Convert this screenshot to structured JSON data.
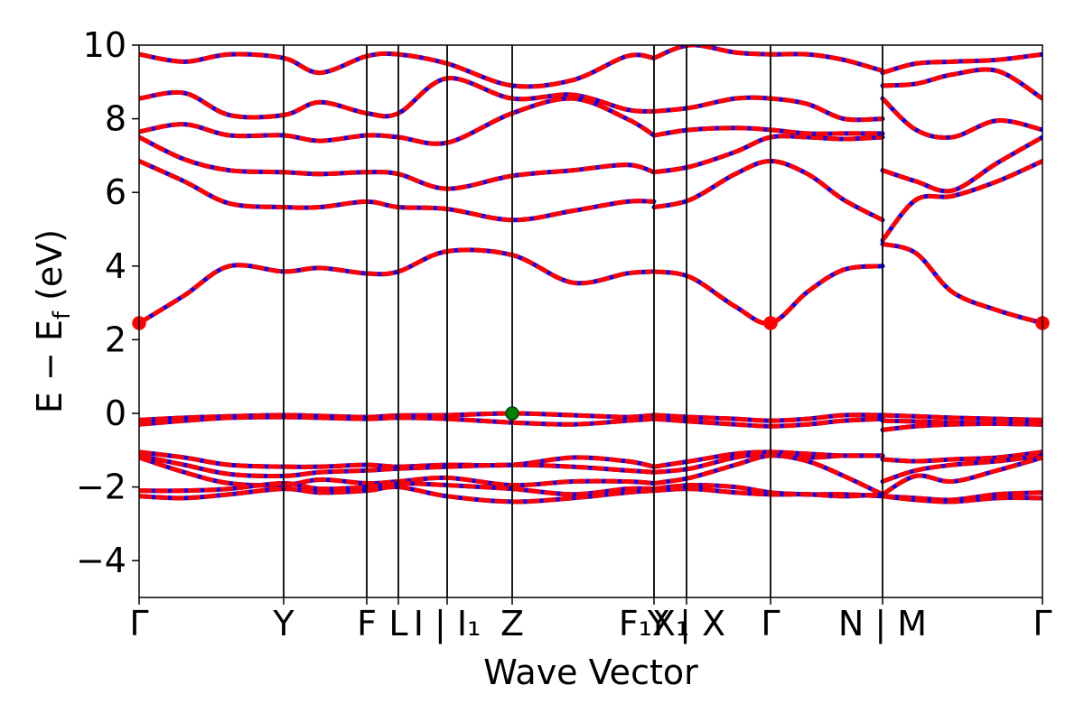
{
  "chart_data": {
    "type": "line",
    "title": "",
    "xlabel": "Wave Vector",
    "ylabel_parts": {
      "main": "E − E",
      "sub": "f",
      "unit": " (eV)"
    },
    "ylim": [
      -5,
      10
    ],
    "yticks": [
      {
        "value": -4,
        "label": "−4"
      },
      {
        "value": -2,
        "label": "−2"
      },
      {
        "value": 0,
        "label": "0"
      },
      {
        "value": 2,
        "label": "2"
      },
      {
        "value": 4,
        "label": "4"
      },
      {
        "value": 6,
        "label": "6"
      },
      {
        "value": 8,
        "label": "8"
      },
      {
        "value": 10,
        "label": "10"
      }
    ],
    "xlim": [
      0,
      100
    ],
    "kpath": [
      {
        "name": "gamma-1",
        "x": 0,
        "label": "Γ"
      },
      {
        "name": "y-1",
        "x": 16.0,
        "label": "Y"
      },
      {
        "name": "f",
        "x": 25.2,
        "label": "F"
      },
      {
        "name": "l",
        "x": 28.7,
        "label": "L"
      },
      {
        "name": "i-i1",
        "x": 34.1,
        "label": "I | I₁"
      },
      {
        "name": "z",
        "x": 41.3,
        "label": "Z"
      },
      {
        "name": "f1-x1",
        "x": 57.0,
        "label": "F₁X₁"
      },
      {
        "name": "y-x",
        "x": 60.6,
        "label": "Y | X"
      },
      {
        "name": "gamma-2",
        "x": 69.9,
        "label": "Γ"
      },
      {
        "name": "n-m",
        "x": 82.3,
        "label": "N | M"
      },
      {
        "name": "gamma-3",
        "x": 100,
        "label": "Γ"
      }
    ],
    "series_color": "#ff0000",
    "overlay_color": "#0000ff",
    "line_width": 5,
    "bands": [
      {
        "x": [
          0,
          5,
          10,
          16,
          20,
          25.2,
          28.7,
          34.1,
          41.3,
          48,
          54,
          57
        ],
        "y": [
          2.45,
          3.2,
          4.0,
          3.85,
          3.95,
          3.8,
          3.85,
          4.4,
          4.3,
          3.55,
          3.8,
          3.85
        ]
      },
      {
        "x": [
          57,
          61,
          66,
          69.9,
          74,
          78,
          82.3
        ],
        "y": [
          3.85,
          3.7,
          2.9,
          2.45,
          3.3,
          3.9,
          4.0
        ]
      },
      {
        "x": [
          82.3,
          86,
          90,
          95,
          100
        ],
        "y": [
          4.6,
          4.35,
          3.3,
          2.8,
          2.45
        ]
      },
      {
        "x": [
          0,
          5,
          10,
          16,
          20,
          25.2,
          28.7,
          34.1,
          41.3,
          48,
          54,
          57
        ],
        "y": [
          6.85,
          6.3,
          5.7,
          5.6,
          5.6,
          5.75,
          5.6,
          5.55,
          5.25,
          5.5,
          5.75,
          5.75
        ]
      },
      {
        "x": [
          57,
          61,
          66,
          69.9,
          74,
          78,
          82.3
        ],
        "y": [
          5.6,
          5.8,
          6.5,
          6.85,
          6.5,
          5.8,
          5.25
        ]
      },
      {
        "x": [
          82.3,
          86,
          90,
          95,
          100
        ],
        "y": [
          4.7,
          5.8,
          5.9,
          6.3,
          6.85
        ]
      },
      {
        "x": [
          0,
          5,
          10,
          16,
          20,
          25.2,
          28.7,
          34.1,
          41.3,
          48,
          54,
          57
        ],
        "y": [
          7.5,
          6.9,
          6.6,
          6.55,
          6.5,
          6.55,
          6.5,
          6.1,
          6.45,
          6.6,
          6.75,
          6.55
        ]
      },
      {
        "x": [
          57,
          61,
          66,
          69.9,
          74,
          78,
          82.3
        ],
        "y": [
          6.55,
          6.7,
          7.1,
          7.5,
          7.5,
          7.45,
          7.5
        ]
      },
      {
        "x": [
          82.3,
          86,
          90,
          95,
          100
        ],
        "y": [
          6.6,
          6.3,
          6.05,
          6.8,
          7.5
        ]
      },
      {
        "x": [
          0,
          5,
          10,
          16,
          20,
          25.2,
          28.7,
          34.1,
          41.3,
          48,
          54,
          57
        ],
        "y": [
          7.65,
          7.85,
          7.55,
          7.55,
          7.4,
          7.55,
          7.5,
          7.35,
          8.15,
          8.55,
          8.0,
          7.55
        ]
      },
      {
        "x": [
          57,
          61,
          66,
          69.9,
          74,
          78,
          82.3
        ],
        "y": [
          7.55,
          7.7,
          7.75,
          7.7,
          7.6,
          7.6,
          7.6
        ]
      },
      {
        "x": [
          82.3,
          86,
          90,
          95,
          100
        ],
        "y": [
          8.55,
          7.7,
          7.5,
          7.95,
          7.7
        ]
      },
      {
        "x": [
          0,
          5,
          10,
          16,
          20,
          25.2,
          28.7,
          34.1,
          41.3,
          48,
          54,
          57
        ],
        "y": [
          8.55,
          8.7,
          8.1,
          8.1,
          8.45,
          8.15,
          8.15,
          9.1,
          8.55,
          8.65,
          8.25,
          8.2
        ]
      },
      {
        "x": [
          57,
          61,
          66,
          69.9,
          74,
          78,
          82.3
        ],
        "y": [
          8.2,
          8.3,
          8.55,
          8.55,
          8.4,
          8.0,
          8.0
        ]
      },
      {
        "x": [
          82.3,
          86,
          90,
          95,
          100
        ],
        "y": [
          8.9,
          8.95,
          9.2,
          9.3,
          8.55
        ]
      },
      {
        "x": [
          0,
          5,
          10,
          16,
          20,
          25.2,
          28.7,
          34.1,
          41.3,
          48,
          54,
          57
        ],
        "y": [
          9.75,
          9.55,
          9.75,
          9.65,
          9.25,
          9.7,
          9.75,
          9.5,
          8.9,
          9.05,
          9.7,
          9.65
        ]
      },
      {
        "x": [
          57,
          61,
          66,
          69.9,
          74,
          78,
          82.3
        ],
        "y": [
          9.65,
          10.0,
          9.8,
          9.75,
          9.75,
          9.6,
          9.3
        ]
      },
      {
        "x": [
          82.3,
          86,
          90,
          95,
          100
        ],
        "y": [
          9.25,
          9.5,
          9.55,
          9.6,
          9.75
        ]
      },
      {
        "x": [
          0,
          5,
          10,
          16,
          20,
          25.2,
          28.7,
          34.1,
          41.3,
          48,
          54,
          57
        ],
        "y": [
          -0.18,
          -0.12,
          -0.08,
          -0.05,
          -0.07,
          -0.1,
          -0.06,
          -0.05,
          0.0,
          -0.05,
          -0.1,
          -0.05
        ]
      },
      {
        "x": [
          57,
          61,
          66,
          69.9,
          74,
          78,
          82.3
        ],
        "y": [
          -0.05,
          -0.1,
          -0.15,
          -0.2,
          -0.15,
          -0.05,
          -0.05
        ]
      },
      {
        "x": [
          82.3,
          86,
          90,
          95,
          100
        ],
        "y": [
          -0.05,
          -0.08,
          -0.12,
          -0.15,
          -0.18
        ]
      },
      {
        "x": [
          0,
          5,
          10,
          16,
          20,
          25.2,
          28.7,
          34.1,
          41.3,
          48,
          54,
          57
        ],
        "y": [
          -0.3,
          -0.2,
          -0.12,
          -0.1,
          -0.12,
          -0.15,
          -0.12,
          -0.15,
          -0.25,
          -0.3,
          -0.2,
          -0.15
        ]
      },
      {
        "x": [
          57,
          61,
          66,
          69.9,
          74,
          78,
          82.3
        ],
        "y": [
          -0.15,
          -0.22,
          -0.3,
          -0.35,
          -0.3,
          -0.2,
          -0.15
        ]
      },
      {
        "x": [
          82.3,
          86,
          90,
          95,
          100
        ],
        "y": [
          -0.2,
          -0.22,
          -0.25,
          -0.28,
          -0.3
        ]
      },
      {
        "x": [
          82.3,
          86,
          90,
          95,
          100
        ],
        "y": [
          -0.45,
          -0.35,
          -0.3,
          -0.28,
          -0.3
        ]
      },
      {
        "x": [
          0,
          5,
          10,
          16,
          20,
          25.2,
          28.7,
          34.1,
          41.3,
          48,
          54,
          57
        ],
        "y": [
          -1.05,
          -1.2,
          -1.4,
          -1.45,
          -1.45,
          -1.4,
          -1.45,
          -1.4,
          -1.4,
          -1.2,
          -1.3,
          -1.45
        ]
      },
      {
        "x": [
          57,
          61,
          66,
          69.9,
          74,
          78,
          82.3
        ],
        "y": [
          -1.45,
          -1.3,
          -1.1,
          -1.05,
          -1.1,
          -1.15,
          -1.15
        ]
      },
      {
        "x": [
          82.3,
          86,
          90,
          95,
          100
        ],
        "y": [
          -1.25,
          -1.3,
          -1.25,
          -1.2,
          -1.05
        ]
      },
      {
        "x": [
          0,
          5,
          10,
          16,
          20,
          25.2,
          28.7,
          34.1,
          41.3,
          48,
          54,
          57
        ],
        "y": [
          -1.15,
          -1.4,
          -1.65,
          -1.7,
          -1.6,
          -1.55,
          -1.5,
          -1.45,
          -1.4,
          -1.45,
          -1.55,
          -1.6
        ]
      },
      {
        "x": [
          57,
          61,
          66,
          69.9,
          74,
          78,
          82.3
        ],
        "y": [
          -1.6,
          -1.5,
          -1.2,
          -1.1,
          -1.2,
          -1.15,
          -1.15
        ]
      },
      {
        "x": [
          82.3,
          86,
          90,
          95,
          100
        ],
        "y": [
          -1.85,
          -1.55,
          -1.4,
          -1.3,
          -1.15
        ]
      },
      {
        "x": [
          0,
          5,
          10,
          16,
          20,
          25.2,
          28.7,
          34.1,
          41.3,
          48,
          54,
          57
        ],
        "y": [
          -1.2,
          -1.6,
          -1.9,
          -1.95,
          -1.8,
          -1.9,
          -1.85,
          -1.75,
          -1.95,
          -1.85,
          -1.85,
          -1.9
        ]
      },
      {
        "x": [
          57,
          61,
          66,
          69.9,
          74,
          78,
          82.3
        ],
        "y": [
          -1.9,
          -1.75,
          -1.4,
          -1.15,
          -1.3,
          -1.7,
          -2.2
        ]
      },
      {
        "x": [
          82.3,
          86,
          90,
          95,
          100
        ],
        "y": [
          -2.2,
          -1.7,
          -1.85,
          -1.55,
          -1.2
        ]
      },
      {
        "x": [
          0,
          5,
          10,
          16,
          20,
          25.2,
          28.7,
          34.1,
          41.3,
          48,
          54,
          57
        ],
        "y": [
          -2.1,
          -2.1,
          -2.05,
          -1.9,
          -2.05,
          -2.0,
          -1.9,
          -1.95,
          -2.05,
          -2.2,
          -2.05,
          -2.05
        ]
      },
      {
        "x": [
          57,
          61,
          66,
          69.9,
          74,
          78,
          82.3
        ],
        "y": [
          -2.05,
          -1.95,
          -2.0,
          -2.15,
          -2.2,
          -2.2,
          -2.25
        ]
      },
      {
        "x": [
          82.3,
          86,
          90,
          95,
          100
        ],
        "y": [
          -2.25,
          -2.3,
          -2.35,
          -2.2,
          -2.15
        ]
      },
      {
        "x": [
          0,
          5,
          10,
          16,
          20,
          25.2,
          28.7,
          34.1,
          41.3,
          48,
          54,
          57
        ],
        "y": [
          -2.25,
          -2.3,
          -2.2,
          -2.05,
          -2.15,
          -2.1,
          -2.0,
          -2.25,
          -2.4,
          -2.3,
          -2.15,
          -2.1
        ]
      },
      {
        "x": [
          57,
          61,
          66,
          69.9,
          74,
          78,
          82.3
        ],
        "y": [
          -2.1,
          -2.05,
          -2.15,
          -2.2,
          -2.2,
          -2.25,
          -2.2
        ]
      },
      {
        "x": [
          82.3,
          86,
          90,
          95,
          100
        ],
        "y": [
          -2.25,
          -2.35,
          -2.4,
          -2.3,
          -2.3
        ]
      }
    ],
    "markers": [
      {
        "name": "cbm-gamma-1",
        "x": 0,
        "y": 2.45,
        "color": "#ff0000"
      },
      {
        "name": "cbm-gamma-2",
        "x": 69.9,
        "y": 2.45,
        "color": "#ff0000"
      },
      {
        "name": "cbm-gamma-3",
        "x": 100,
        "y": 2.45,
        "color": "#ff0000"
      },
      {
        "name": "vbm-z",
        "x": 41.3,
        "y": 0.0,
        "color": "#008000"
      }
    ]
  }
}
